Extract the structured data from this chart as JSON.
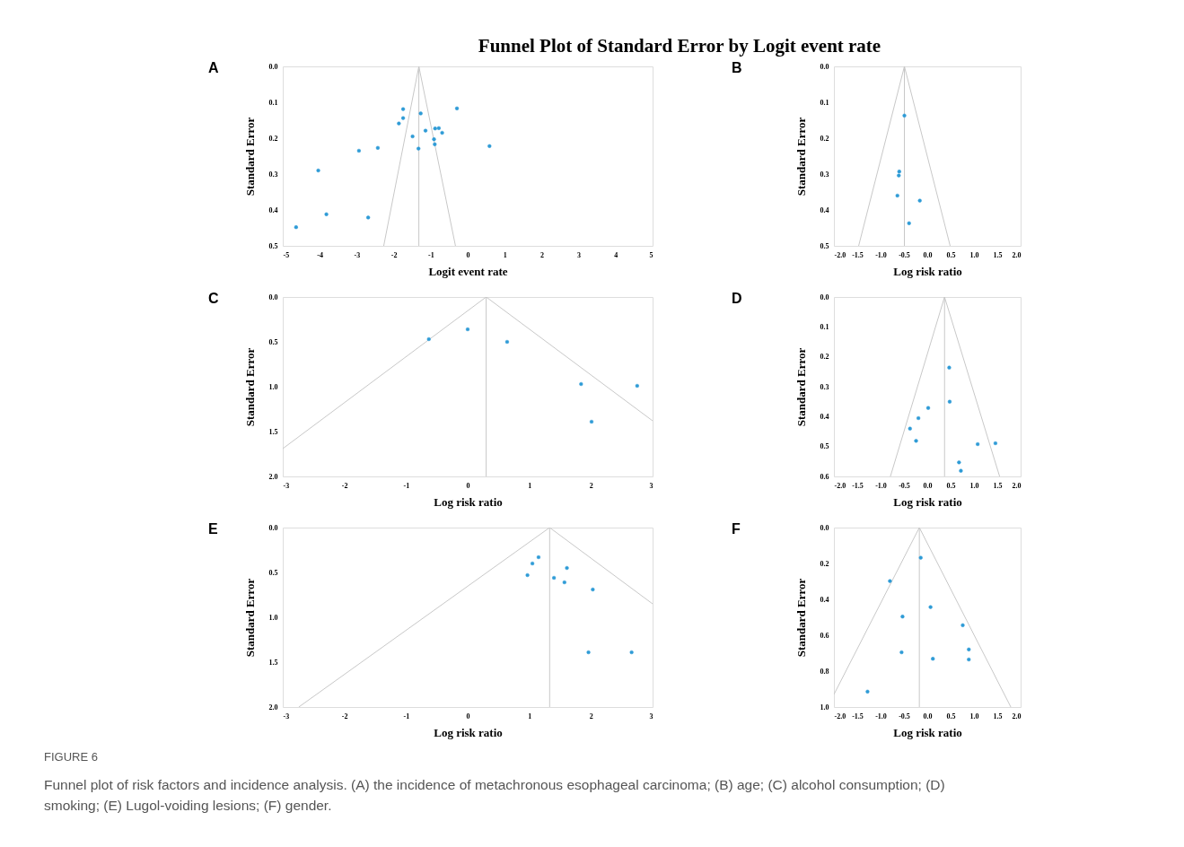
{
  "chart_data": [
    {
      "type": "scatter",
      "title": "Funnel Plot of Standard Error by Logit event rate",
      "annotations": [
        "A"
      ],
      "xlabel": "Logit event rate",
      "ylabel": "Standard Error",
      "xlim": [
        -5,
        5
      ],
      "xticks": [
        -5,
        -4,
        -3,
        -2,
        -1,
        0,
        1,
        2,
        3,
        4,
        5
      ],
      "ylim": [
        0.5,
        0
      ],
      "yticks": [
        {
          "value": 0,
          "label": "0.0"
        },
        0.1,
        0.2,
        0.3,
        0.4,
        0.5
      ],
      "ref_lines": [
        {
          "axis": "x",
          "value": -1.32,
          "color": "#c8c8c8"
        }
      ],
      "series": [
        {
          "type": "scatter",
          "marker": "circle",
          "color": "#2e9bd6",
          "x": [
            -1.745,
            -1.27,
            -0.29,
            -1.745,
            -1.86,
            -0.88,
            -0.78,
            -1.14,
            -0.69,
            -1.49,
            -0.91,
            -0.89,
            -1.33,
            -2.43,
            -2.94,
            0.59,
            -4.04,
            -3.82,
            -2.69,
            -4.64
          ],
          "values": [
            0.119,
            0.131,
            0.117,
            0.144,
            0.159,
            0.173,
            0.172,
            0.179,
            0.185,
            0.195,
            0.203,
            0.217,
            0.229,
            0.227,
            0.235,
            0.222,
            0.29,
            0.412,
            0.421,
            0.448
          ]
        },
        {
          "type": "line",
          "color": "#c8c8c8",
          "x": [
            -2.27,
            -1.32,
            -0.33
          ],
          "values": [
            0.5,
            0,
            0.5
          ]
        }
      ]
    },
    {
      "type": "scatter",
      "annotations": [
        "B"
      ],
      "xlabel": "Log risk ratio",
      "ylabel": "Standard Error",
      "xlim": [
        -2,
        2
      ],
      "xticks": [
        {
          "value": -2,
          "label": "-2.0"
        },
        -1.5,
        {
          "value": -1,
          "label": "-1.0"
        },
        -0.5,
        {
          "value": 0,
          "label": "0.0"
        },
        0.5,
        {
          "value": 1,
          "label": "1.0"
        },
        1.5,
        {
          "value": 2,
          "label": "2.0"
        }
      ],
      "ylim": [
        0.5,
        0
      ],
      "yticks": [
        {
          "value": 0,
          "label": "0.0"
        },
        0.1,
        0.2,
        0.3,
        0.4,
        0.5
      ],
      "ref_lines": [
        {
          "axis": "x",
          "value": -0.49,
          "color": "#c8c8c8"
        }
      ],
      "series": [
        {
          "type": "scatter",
          "marker": "circle",
          "color": "#2e9bd6",
          "x": [
            -0.49,
            -0.6,
            -0.61,
            -0.64,
            -0.16,
            -0.39
          ],
          "values": [
            0.137,
            0.293,
            0.304,
            0.36,
            0.374,
            0.437
          ]
        },
        {
          "type": "line",
          "color": "#c8c8c8",
          "x": [
            -1.47,
            -0.49,
            0.49
          ],
          "values": [
            0.5,
            0,
            0.5
          ]
        }
      ]
    },
    {
      "type": "scatter",
      "annotations": [
        "C"
      ],
      "xlabel": "Log risk ratio",
      "ylabel": "Standard Error",
      "xlim": [
        -3,
        3
      ],
      "xticks": [
        -3,
        -2,
        -1,
        0,
        1,
        2,
        3
      ],
      "ylim": [
        2,
        0
      ],
      "yticks": [
        {
          "value": 0,
          "label": "0.0"
        },
        0.5,
        {
          "value": 1,
          "label": "1.0"
        },
        1.5,
        {
          "value": 2,
          "label": "2.0"
        }
      ],
      "ref_lines": [
        {
          "axis": "x",
          "value": 0.3,
          "color": "#c8c8c8"
        }
      ],
      "series": [
        {
          "type": "scatter",
          "marker": "circle",
          "color": "#2e9bd6",
          "x": [
            -0.63,
            0.0,
            0.64,
            1.84,
            2.75,
            2.01
          ],
          "values": [
            0.47,
            0.36,
            0.5,
            0.97,
            0.99,
            1.39
          ]
        },
        {
          "type": "line",
          "color": "#c8c8c8",
          "x": [
            -3,
            0.3,
            3
          ],
          "values": [
            1.69,
            0,
            1.38
          ]
        }
      ]
    },
    {
      "type": "scatter",
      "annotations": [
        "D"
      ],
      "xlabel": "Log risk ratio",
      "ylabel": "Standard Error",
      "xlim": [
        -2,
        2
      ],
      "xticks": [
        {
          "value": -2,
          "label": "-2.0"
        },
        -1.5,
        {
          "value": -1,
          "label": "-1.0"
        },
        -0.5,
        {
          "value": 0,
          "label": "0.0"
        },
        0.5,
        {
          "value": 1,
          "label": "1.0"
        },
        1.5,
        {
          "value": 2,
          "label": "2.0"
        }
      ],
      "ylim": [
        0.6,
        0
      ],
      "yticks": [
        {
          "value": 0,
          "label": "0.0"
        },
        0.1,
        0.2,
        0.3,
        0.4,
        0.5,
        0.6
      ],
      "ref_lines": [
        {
          "axis": "x",
          "value": 0.37,
          "color": "#c8c8c8"
        }
      ],
      "series": [
        {
          "type": "scatter",
          "marker": "circle",
          "color": "#2e9bd6",
          "x": [
            0.47,
            0.48,
            0.02,
            -0.19,
            -0.37,
            -0.24,
            1.08,
            1.46,
            0.68,
            0.72
          ],
          "values": [
            0.236,
            0.35,
            0.371,
            0.405,
            0.44,
            0.481,
            0.492,
            0.489,
            0.553,
            0.581
          ]
        },
        {
          "type": "line",
          "color": "#c8c8c8",
          "x": [
            -0.79,
            0.37,
            1.55
          ],
          "values": [
            0.6,
            0,
            0.6
          ]
        }
      ]
    },
    {
      "type": "scatter",
      "annotations": [
        "E"
      ],
      "xlabel": "Log risk ratio",
      "ylabel": "Standard Error",
      "xlim": [
        -3,
        3
      ],
      "xticks": [
        -3,
        -2,
        -1,
        0,
        1,
        2,
        3
      ],
      "ylim": [
        2,
        0
      ],
      "yticks": [
        {
          "value": 0,
          "label": "0.0"
        },
        0.5,
        {
          "value": 1,
          "label": "1.0"
        },
        1.5,
        {
          "value": 2,
          "label": "2.0"
        }
      ],
      "ref_lines": [
        {
          "axis": "x",
          "value": 1.33,
          "color": "#c8c8c8"
        }
      ],
      "series": [
        {
          "type": "scatter",
          "marker": "circle",
          "color": "#2e9bd6",
          "x": [
            1.15,
            1.05,
            0.97,
            1.61,
            1.4,
            1.57,
            2.03,
            1.96,
            2.66
          ],
          "values": [
            0.33,
            0.4,
            0.53,
            0.45,
            0.56,
            0.61,
            0.69,
            1.39,
            1.39
          ]
        },
        {
          "type": "line",
          "color": "#c8c8c8",
          "x": [
            -2.74,
            1.33,
            3
          ],
          "values": [
            2,
            0,
            0.85
          ]
        }
      ]
    },
    {
      "type": "scatter",
      "annotations": [
        "F",
        "FIGURE 6",
        "Funnel plot of risk factors and incidence analysis. (A) the incidence of metachronous esophageal carcinoma; (B) age; (C) alcohol consumption; (D) smoking; (E) Lugol-voiding lesions; (F) gender."
      ],
      "xlabel": "Log risk ratio",
      "ylabel": "Standard Error",
      "xlim": [
        -2,
        2
      ],
      "xticks": [
        {
          "value": -2,
          "label": "-2.0"
        },
        -1.5,
        {
          "value": -1,
          "label": "-1.0"
        },
        -0.5,
        {
          "value": 0,
          "label": "0.0"
        },
        0.5,
        {
          "value": 1,
          "label": "1.0"
        },
        1.5,
        {
          "value": 2,
          "label": "2.0"
        }
      ],
      "ylim": [
        1,
        0
      ],
      "yticks": [
        {
          "value": 0,
          "label": "0.0"
        },
        0.2,
        0.4,
        0.6,
        0.8,
        {
          "value": 1,
          "label": "1.0"
        }
      ],
      "ref_lines": [
        {
          "axis": "x",
          "value": -0.17,
          "color": "#c8c8c8"
        }
      ],
      "series": [
        {
          "type": "scatter",
          "marker": "circle",
          "color": "#2e9bd6",
          "x": [
            -0.14,
            -0.8,
            0.07,
            -0.53,
            0.76,
            0.89,
            0.89,
            0.12,
            -0.55,
            -1.28
          ],
          "values": [
            0.168,
            0.298,
            0.443,
            0.496,
            0.544,
            0.679,
            0.735,
            0.731,
            0.695,
            0.914
          ]
        },
        {
          "type": "line",
          "color": "#c8c8c8",
          "x": [
            -2,
            -0.17,
            1.79
          ],
          "values": [
            0.93,
            0,
            1.0
          ]
        }
      ]
    }
  ]
}
